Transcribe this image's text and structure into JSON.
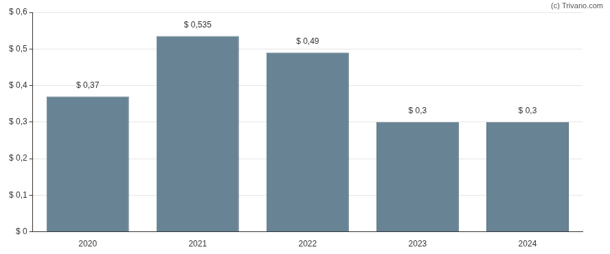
{
  "chart_data": {
    "type": "bar",
    "annotations": [
      "(c) Trivano.com"
    ],
    "categories": [
      "2020",
      "2021",
      "2022",
      "2023",
      "2024"
    ],
    "values": [
      0.37,
      0.535,
      0.49,
      0.3,
      0.3
    ],
    "value_labels": [
      "$ 0,37",
      "$ 0,535",
      "$ 0,49",
      "$ 0,3",
      "$ 0,3"
    ],
    "data_labels": true,
    "color": "#678394",
    "ylim": [
      0,
      0.6
    ],
    "yticks": [
      {
        "value": 0,
        "label": "$ 0"
      },
      {
        "value": 0.1,
        "label": "$ 0,1"
      },
      {
        "value": 0.2,
        "label": "$ 0,2"
      },
      {
        "value": 0.3,
        "label": "$ 0,3"
      },
      {
        "value": 0.4,
        "label": "$ 0,4"
      },
      {
        "value": 0.5,
        "label": "$ 0,5"
      },
      {
        "value": 0.6,
        "label": "$ 0,6"
      }
    ],
    "grid": true
  }
}
